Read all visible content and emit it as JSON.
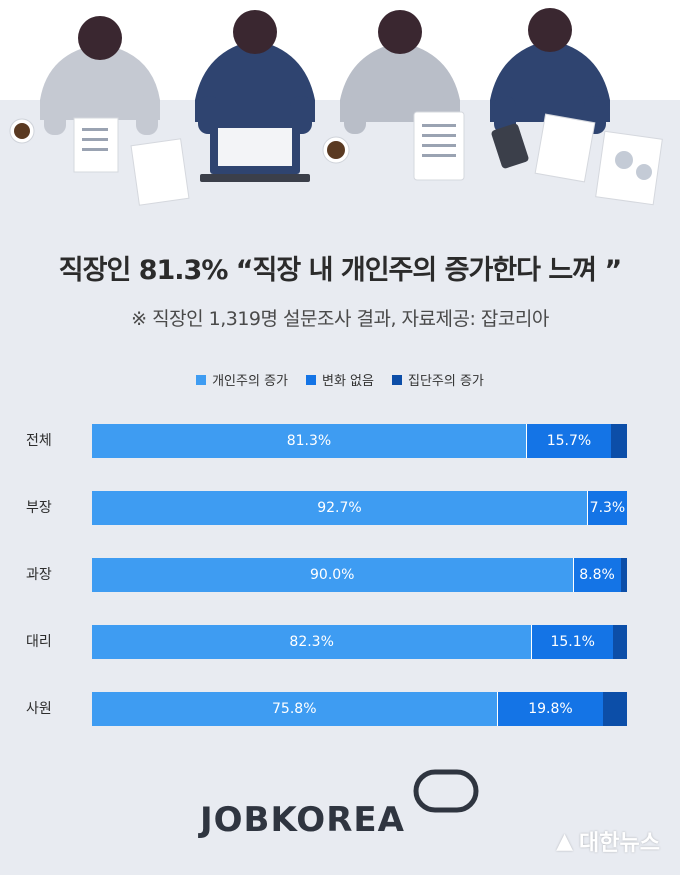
{
  "title": "직장인 81.3% “직장 내 개인주의 증가한다 느껴 ”",
  "subtitle": "※ 직장인 1,319명 설문조사 결과,  자료제공: 잡코리아",
  "brand": "JOBKOREA",
  "watermark": "대한뉴스",
  "colors": {
    "series1": "#3e9cf2",
    "series2": "#1474e6",
    "series3": "#0c4ea8",
    "background": "#e8ebf1"
  },
  "chart_data": {
    "type": "bar",
    "orientation": "horizontal",
    "stacked": true,
    "legend_position": "top",
    "categories": [
      "전체",
      "부장",
      "과장",
      "대리",
      "사원"
    ],
    "series": [
      {
        "name": "개인주의 증가",
        "values": [
          81.3,
          92.7,
          90.0,
          82.3,
          75.8
        ],
        "labels": [
          "81.3%",
          "92.7%",
          "90.0%",
          "82.3%",
          "75.8%"
        ]
      },
      {
        "name": "변화 없음",
        "values": [
          15.7,
          7.3,
          8.8,
          15.1,
          19.8
        ],
        "labels": [
          "15.7%",
          "7.3%",
          "8.8%",
          "15.1%",
          "19.8%"
        ]
      },
      {
        "name": "집단주의 증가",
        "values": [
          3.0,
          0.0,
          1.2,
          2.6,
          4.4
        ]
      }
    ],
    "xlim": [
      0,
      100
    ]
  }
}
